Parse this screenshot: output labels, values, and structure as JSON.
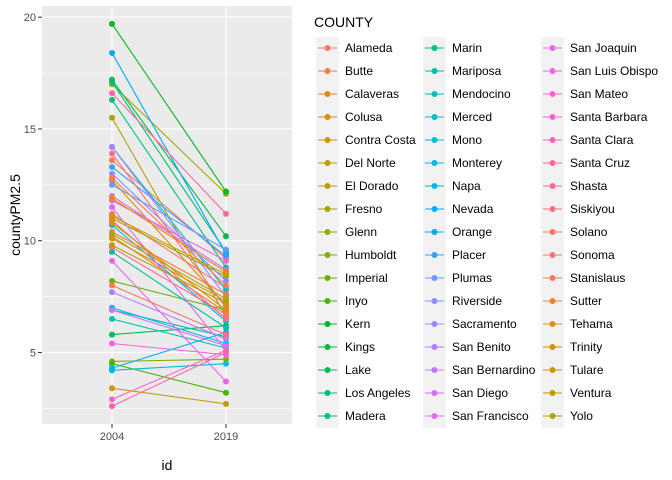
{
  "chart_data": {
    "type": "line",
    "xlabel": "id",
    "ylabel": "countyPM2.5",
    "x": [
      "2004",
      "2019"
    ],
    "ylim": [
      1.8,
      20.5
    ],
    "yticks": [
      5,
      10,
      15,
      20
    ],
    "grid": true,
    "legend": {
      "title": "COUNTY",
      "placement": "right",
      "columns": 3
    },
    "series": [
      {
        "name": "Alameda",
        "color": "#F8766D",
        "values": [
          11.2,
          7.9
        ]
      },
      {
        "name": "Butte",
        "color": "#F07E4C",
        "values": [
          13.6,
          9.2
        ]
      },
      {
        "name": "Calaveras",
        "color": "#E7851E",
        "values": [
          10.2,
          6.8
        ]
      },
      {
        "name": "Colusa",
        "color": "#DD8D00",
        "values": [
          12.7,
          7.1
        ]
      },
      {
        "name": "Contra Costa",
        "color": "#D19400",
        "values": [
          10.1,
          7.3
        ]
      },
      {
        "name": "Del Norte",
        "color": "#C49A00",
        "values": [
          3.4,
          2.7
        ]
      },
      {
        "name": "El Dorado",
        "color": "#B59F00",
        "values": [
          15.5,
          6.6
        ]
      },
      {
        "name": "Fresno",
        "color": "#A5A400",
        "values": [
          17.0,
          12.1
        ]
      },
      {
        "name": "Glenn",
        "color": "#93A900",
        "values": [
          11.0,
          8.4
        ]
      },
      {
        "name": "Humboldt",
        "color": "#7FAE00",
        "values": [
          4.6,
          4.7
        ]
      },
      {
        "name": "Imperial",
        "color": "#66B200",
        "values": [
          8.2,
          6.9
        ]
      },
      {
        "name": "Inyo",
        "color": "#46B500",
        "values": [
          4.5,
          3.2
        ]
      },
      {
        "name": "Kern",
        "color": "#00B81F",
        "values": [
          19.7,
          12.2
        ]
      },
      {
        "name": "Kings",
        "color": "#00BA42",
        "values": [
          17.2,
          10.2
        ]
      },
      {
        "name": "Lake",
        "color": "#00BC5A",
        "values": [
          5.8,
          6.2
        ]
      },
      {
        "name": "Los Angeles",
        "color": "#00BE70",
        "values": [
          17.1,
          9.5
        ]
      },
      {
        "name": "Madera",
        "color": "#00BF84",
        "values": [
          16.3,
          8.8
        ]
      },
      {
        "name": "Marin",
        "color": "#00C097",
        "values": [
          9.5,
          6.1
        ]
      },
      {
        "name": "Mariposa",
        "color": "#00C0A9",
        "values": [
          6.9,
          5.7
        ]
      },
      {
        "name": "Mendocino",
        "color": "#00C0BA",
        "values": [
          6.5,
          5.2
        ]
      },
      {
        "name": "Merced",
        "color": "#00BECA",
        "values": [
          14.2,
          7.8
        ]
      },
      {
        "name": "Mono",
        "color": "#00BCD8",
        "values": [
          4.2,
          4.5
        ]
      },
      {
        "name": "Monterey",
        "color": "#00B9E5",
        "values": [
          7.0,
          5.4
        ]
      },
      {
        "name": "Napa",
        "color": "#00B5F1",
        "values": [
          10.7,
          6.4
        ]
      },
      {
        "name": "Nevada",
        "color": "#00AFFB",
        "values": [
          4.3,
          5.9
        ]
      },
      {
        "name": "Orange",
        "color": "#00A8FF",
        "values": [
          18.4,
          9.4
        ]
      },
      {
        "name": "Placer",
        "color": "#38A0FF",
        "values": [
          13.3,
          9.3
        ]
      },
      {
        "name": "Plumas",
        "color": "#6B97FF",
        "values": [
          12.5,
          9.6
        ]
      },
      {
        "name": "Riverside",
        "color": "#8B8EFF",
        "values": [
          13.0,
          8.2
        ]
      },
      {
        "name": "Sacramento",
        "color": "#A385FF",
        "values": [
          14.2,
          7.5
        ]
      },
      {
        "name": "San Benito",
        "color": "#B67DFF",
        "values": [
          7.7,
          5.6
        ]
      },
      {
        "name": "San Bernardino",
        "color": "#C775FF",
        "values": [
          12.0,
          8.7
        ]
      },
      {
        "name": "San Diego",
        "color": "#D46EFB",
        "values": [
          6.9,
          5.3
        ]
      },
      {
        "name": "San Francisco",
        "color": "#E06AF5",
        "values": [
          11.5,
          5.1
        ]
      },
      {
        "name": "San Joaquin",
        "color": "#EB66EC",
        "values": [
          9.1,
          3.7
        ]
      },
      {
        "name": "San Luis Obispo",
        "color": "#F364E1",
        "values": [
          5.4,
          4.9
        ]
      },
      {
        "name": "San Mateo",
        "color": "#FA62D5",
        "values": [
          11.8,
          9.1
        ]
      },
      {
        "name": "Santa Barbara",
        "color": "#FF62C6",
        "values": [
          2.9,
          5.1
        ]
      },
      {
        "name": "Santa Clara",
        "color": "#FF63B7",
        "values": [
          2.6,
          5.0
        ]
      },
      {
        "name": "Santa Cruz",
        "color": "#FF66A6",
        "values": [
          16.6,
          11.2
        ]
      },
      {
        "name": "Shasta",
        "color": "#FF6994",
        "values": [
          9.7,
          6.7
        ]
      },
      {
        "name": "Siskiyou",
        "color": "#FF6D81",
        "values": [
          13.9,
          7.0
        ]
      },
      {
        "name": "Solano",
        "color": "#FD716E",
        "values": [
          10.9,
          6.5
        ]
      },
      {
        "name": "Sonoma",
        "color": "#F8766D",
        "values": [
          8.0,
          5.8
        ]
      },
      {
        "name": "Stanislaus",
        "color": "#F37B59",
        "values": [
          12.8,
          8.0
        ]
      },
      {
        "name": "Sutter",
        "color": "#EC8239",
        "values": [
          10.4,
          7.6
        ]
      },
      {
        "name": "Tehama",
        "color": "#E4881A",
        "values": [
          11.9,
          8.6
        ]
      },
      {
        "name": "Trinity",
        "color": "#DA8F00",
        "values": [
          10.8,
          6.9
        ]
      },
      {
        "name": "Tulare",
        "color": "#CE9600",
        "values": [
          11.1,
          8.5
        ]
      },
      {
        "name": "Ventura",
        "color": "#C09B00",
        "values": [
          9.8,
          7.2
        ]
      },
      {
        "name": "Yolo",
        "color": "#B0A100",
        "values": [
          10.3,
          7.4
        ]
      }
    ]
  }
}
